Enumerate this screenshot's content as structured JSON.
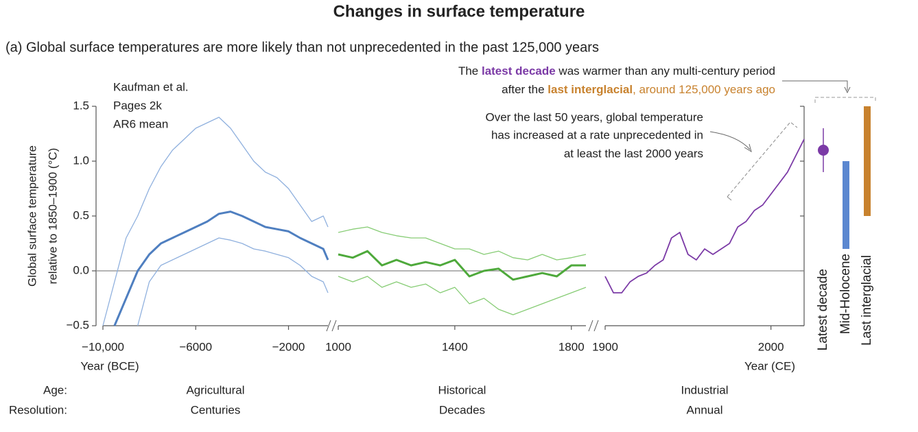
{
  "title": "Changes in surface temperature",
  "subtitle": "(a) Global surface temperatures are more likely than not unprecedented in the past 125,000 years",
  "annotations": {
    "latest_line1": [
      "The ",
      "latest decade",
      " was warmer than any multi-century period"
    ],
    "latest_line2": [
      "after the ",
      "last interglacial",
      ", around 125,000 years ago"
    ],
    "rate": [
      "Over the last 50 years, global temperature",
      "has increased at a rate unprecedented in",
      "at least the last 2000 years"
    ]
  },
  "rows": {
    "age": "Age:",
    "resolution": "Resolution:"
  },
  "chart_data": [
    {
      "type": "line",
      "ylabel": [
        "Global surface temperature",
        "relative to 1850–1900 (°C)"
      ],
      "xlabel": "Year (BCE)",
      "age": "Agricultural",
      "resolution": "Centuries",
      "ylim": [
        -0.5,
        1.5
      ],
      "yticks": [
        {
          "value": -0.5,
          "label": "−0.5"
        },
        {
          "value": 0,
          "label": "0.0"
        },
        0.5,
        {
          "value": 1,
          "label": "1.0"
        },
        1.5
      ],
      "xlim": [
        -10000,
        -300
      ],
      "xticks": [
        {
          "value": -10000,
          "label": "−10,000"
        },
        {
          "value": -6000,
          "label": "−6000"
        },
        {
          "value": -2000,
          "label": "−2000"
        }
      ],
      "x": [
        -10000,
        -9500,
        -9000,
        -8500,
        -8000,
        -7500,
        -7000,
        -6500,
        -6000,
        -5500,
        -5000,
        -4500,
        -4000,
        -3500,
        -3000,
        -2500,
        -2000,
        -1500,
        -1000,
        -500,
        -300
      ],
      "series": [
        {
          "name": "Kaufman et al.",
          "color": "#4f7fc0",
          "values": [
            null,
            -0.5,
            -0.25,
            0.0,
            0.15,
            0.25,
            0.3,
            0.35,
            0.4,
            0.45,
            0.52,
            0.54,
            0.5,
            0.45,
            0.4,
            0.38,
            0.36,
            0.3,
            0.25,
            0.2,
            0.1
          ]
        },
        {
          "color": "#8fb0de",
          "values": [
            -0.5,
            -0.1,
            0.3,
            0.5,
            0.75,
            0.95,
            1.1,
            1.2,
            1.3,
            1.35,
            1.4,
            1.3,
            1.15,
            1.0,
            0.9,
            0.85,
            0.75,
            0.6,
            0.45,
            0.5,
            0.4
          ]
        },
        {
          "color": "#8fb0de",
          "values": [
            null,
            null,
            null,
            -0.5,
            -0.1,
            0.05,
            0.1,
            0.15,
            0.2,
            0.25,
            0.3,
            0.28,
            0.25,
            0.2,
            0.18,
            0.15,
            0.12,
            0.05,
            -0.05,
            -0.1,
            -0.2
          ]
        }
      ]
    },
    {
      "type": "line",
      "age": "Historical",
      "resolution": "Decades",
      "ylim": [
        -0.5,
        1.5
      ],
      "xlim": [
        1000,
        1850
      ],
      "xticks": [
        1000,
        1400,
        1800
      ],
      "x": [
        1000,
        1050,
        1100,
        1150,
        1200,
        1250,
        1300,
        1350,
        1400,
        1450,
        1500,
        1550,
        1600,
        1650,
        1700,
        1750,
        1800,
        1850
      ],
      "series": [
        {
          "name": "Pages 2k",
          "color": "#4ea93b",
          "values": [
            0.15,
            0.12,
            0.18,
            0.05,
            0.1,
            0.05,
            0.08,
            0.05,
            0.1,
            -0.05,
            0.0,
            0.02,
            -0.08,
            -0.05,
            -0.02,
            -0.05,
            0.05,
            0.05
          ]
        },
        {
          "color": "#86cc74",
          "values": [
            0.35,
            0.38,
            0.4,
            0.35,
            0.32,
            0.3,
            0.3,
            0.25,
            0.2,
            0.2,
            0.15,
            0.18,
            0.12,
            0.1,
            0.15,
            0.1,
            0.12,
            0.15
          ]
        },
        {
          "color": "#86cc74",
          "values": [
            -0.05,
            -0.1,
            -0.05,
            -0.15,
            -0.1,
            -0.15,
            -0.12,
            -0.2,
            -0.15,
            -0.3,
            -0.25,
            -0.35,
            -0.4,
            -0.35,
            -0.3,
            -0.25,
            -0.2,
            -0.15
          ]
        }
      ]
    },
    {
      "type": "line",
      "xlabel": "Year (CE)",
      "age": "Industrial",
      "resolution": "Annual",
      "ylim": [
        -0.5,
        1.5
      ],
      "xlim": [
        1900,
        2020
      ],
      "xticks": [
        1900,
        2000
      ],
      "x": [
        1900,
        1905,
        1910,
        1915,
        1920,
        1925,
        1930,
        1935,
        1940,
        1945,
        1950,
        1955,
        1960,
        1965,
        1970,
        1975,
        1980,
        1985,
        1990,
        1995,
        2000,
        2005,
        2010,
        2015,
        2020
      ],
      "series": [
        {
          "name": "AR6 mean",
          "color": "#7b3aa6",
          "values": [
            -0.05,
            -0.2,
            -0.2,
            -0.1,
            -0.05,
            -0.02,
            0.05,
            0.1,
            0.3,
            0.35,
            0.15,
            0.1,
            0.2,
            0.15,
            0.2,
            0.25,
            0.4,
            0.45,
            0.55,
            0.6,
            0.7,
            0.8,
            0.9,
            1.05,
            1.2
          ]
        }
      ]
    },
    {
      "type": "range",
      "ylim": [
        -0.5,
        1.5
      ],
      "categories": [
        "Latest decade",
        "Mid-Holocene",
        "Last interglacial"
      ],
      "values": [
        1.1,
        null,
        null
      ],
      "low": [
        0.9,
        0.2,
        0.5
      ],
      "high": [
        1.3,
        1.0,
        1.5
      ],
      "colors": [
        "#7b3aa6",
        "#5b87d0",
        "#c8822e"
      ]
    }
  ]
}
